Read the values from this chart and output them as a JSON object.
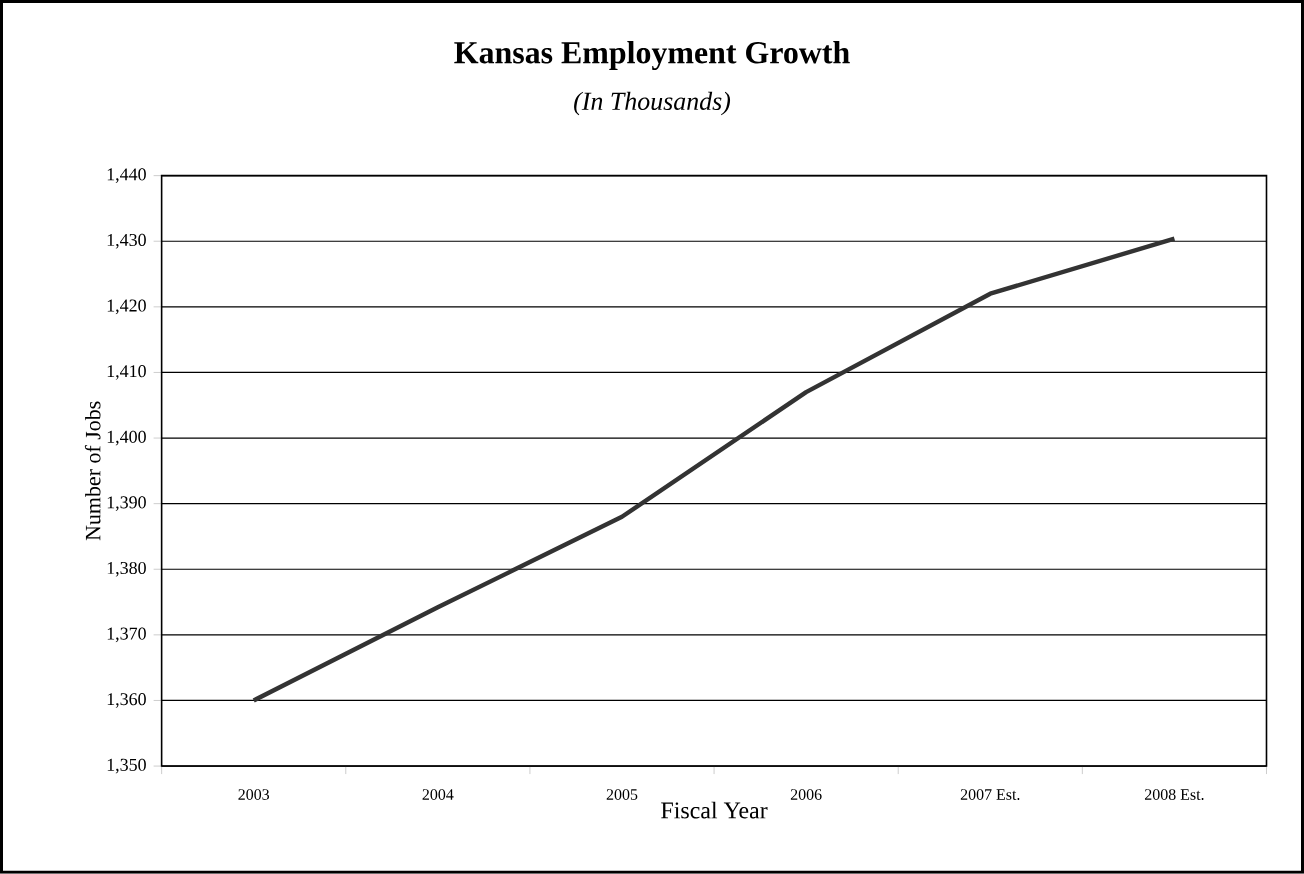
{
  "chart_data": {
    "type": "line",
    "title": "Kansas Employment Growth",
    "subtitle": "(In Thousands)",
    "xlabel": "Fiscal Year",
    "ylabel": "Number of Jobs",
    "categories": [
      "2003",
      "2004",
      "2005",
      "2006",
      "2007 Est.",
      "2008 Est."
    ],
    "series": [
      {
        "color": "#333333",
        "values": [
          1360,
          1374.2,
          1388,
          1407,
          1422,
          1430.4
        ]
      }
    ],
    "ylim": [
      1350,
      1440
    ],
    "yticks": [
      {
        "value": 1350,
        "label": "1,350"
      },
      {
        "value": 1360,
        "label": "1,360"
      },
      {
        "value": 1370,
        "label": "1,370"
      },
      {
        "value": 1380,
        "label": "1,380"
      },
      {
        "value": 1390,
        "label": "1,390"
      },
      {
        "value": 1400,
        "label": "1,400"
      },
      {
        "value": 1410,
        "label": "1,410"
      },
      {
        "value": 1420,
        "label": "1,420"
      },
      {
        "value": 1430,
        "label": "1,430"
      },
      {
        "value": 1440,
        "label": "1,440"
      }
    ],
    "grid": "y",
    "legend": false,
    "marker": "none",
    "line_style": "solid"
  }
}
